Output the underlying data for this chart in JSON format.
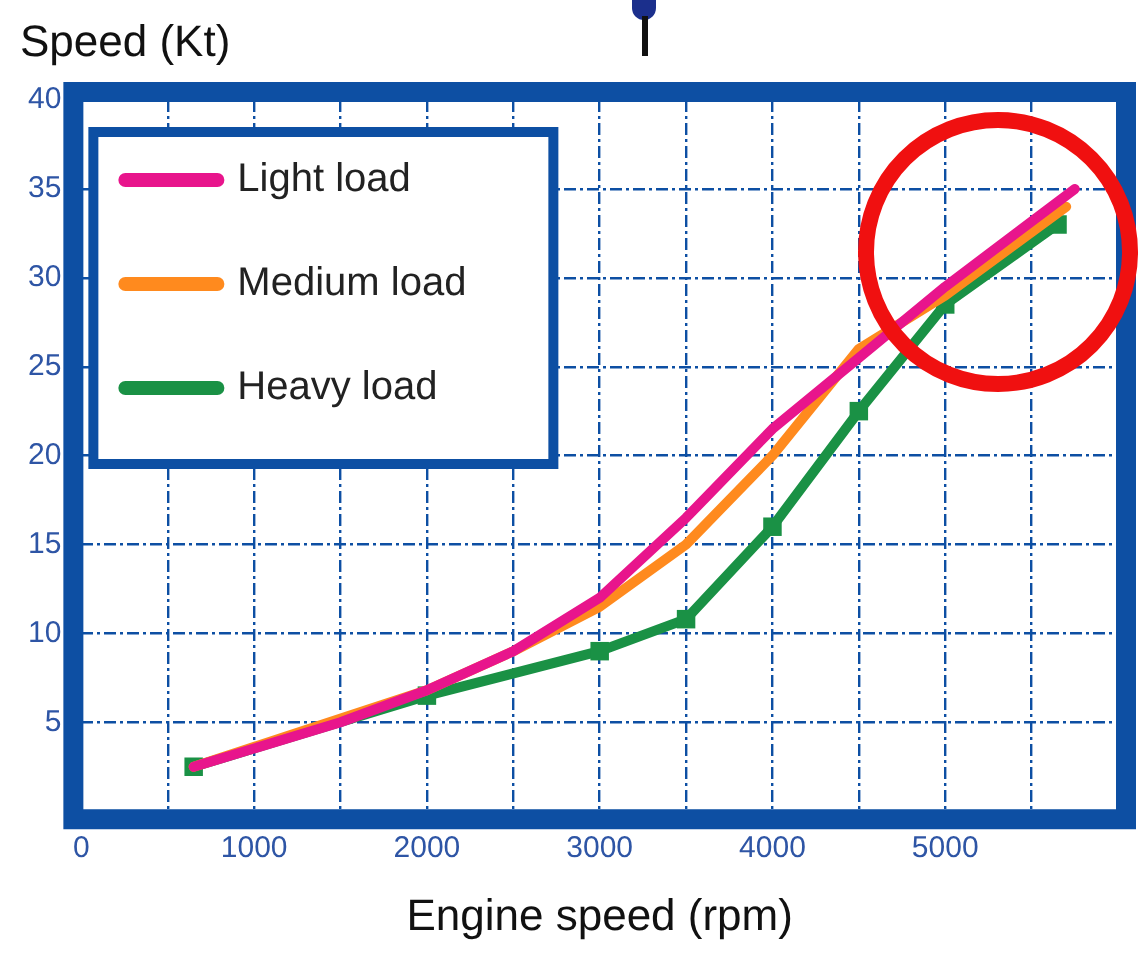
{
  "chart_data": {
    "type": "line",
    "xlabel": "Engine speed (rpm)",
    "ylabel": "Speed (Kt)",
    "xlim": [
      0,
      6000
    ],
    "ylim": [
      0,
      40
    ],
    "xticks": [
      0,
      {
        "value": 500,
        "label": null
      },
      1000,
      {
        "value": 1500,
        "label": null
      },
      2000,
      {
        "value": 2500,
        "label": null
      },
      3000,
      {
        "value": 3500,
        "label": null
      },
      4000,
      {
        "value": 4500,
        "label": null
      },
      5000,
      {
        "value": 5500,
        "label": null
      }
    ],
    "yticks": [
      5,
      10,
      15,
      20,
      25,
      30,
      35,
      40
    ],
    "grid": true,
    "legend": "top left",
    "line_style": "solid",
    "series": [
      {
        "name": "Light load",
        "color": "#e8158c",
        "x": [
          650,
          1500,
          2000,
          2500,
          3000,
          3500,
          4000,
          4500,
          5000,
          5750
        ],
        "values": [
          2.5,
          5,
          6.8,
          9,
          12,
          16.5,
          21.5,
          25.5,
          29.5,
          35
        ]
      },
      {
        "name": "Medium load",
        "color": "#ff8a1e",
        "x": [
          650,
          2000,
          2500,
          3000,
          3500,
          4000,
          4500,
          5000,
          5700
        ],
        "values": [
          2.5,
          6.8,
          9,
          11.5,
          15,
          20,
          26,
          29,
          34
        ]
      },
      {
        "name": "Heavy load",
        "color": "#1a9145",
        "marker": "square",
        "x": [
          650,
          2000,
          3000,
          3500,
          4000,
          4500,
          5000,
          5650
        ],
        "values": [
          2.5,
          6.5,
          9,
          10.8,
          16,
          22.5,
          28.5,
          33
        ]
      }
    ]
  }
}
